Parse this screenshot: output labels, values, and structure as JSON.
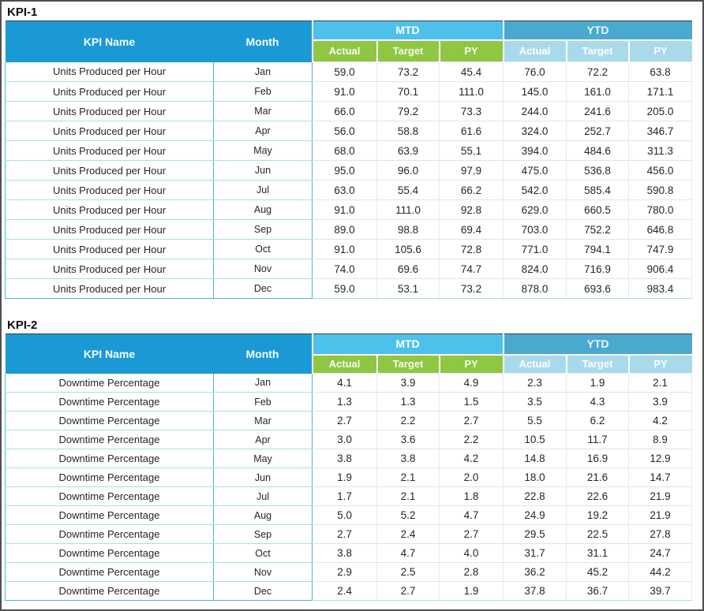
{
  "ui": {
    "sections": [
      {
        "label": "KPI-1"
      },
      {
        "label": "KPI-2"
      }
    ],
    "table_header": {
      "kpi_name": "KPI Name",
      "month": "Month",
      "mtd": "MTD",
      "ytd": "YTD",
      "sub_columns": [
        "Actual",
        "Target",
        "PY"
      ]
    },
    "colors": {
      "main_header": "#1b99d5",
      "mtd_band": "#4ec0ec",
      "ytd_band": "#4aa9ce",
      "mtd_sub": "#8fc743",
      "ytd_sub": "#a9daec",
      "teal_border": "#46b8cb",
      "teal_row": "#a9dee7",
      "num_hline": "#d2e9f1",
      "num_vline": "#e1ecf1",
      "frame_border": "#4f4f4f"
    },
    "value_decimals": 1
  },
  "chart_data": [
    {
      "type": "table",
      "title": "KPI-1",
      "kpi_name": "Units Produced per Hour",
      "columns": [
        "KPI Name",
        "Month",
        "MTD Actual",
        "MTD Target",
        "MTD PY",
        "YTD Actual",
        "YTD Target",
        "YTD PY"
      ],
      "months": [
        "Jan",
        "Feb",
        "Mar",
        "Apr",
        "May",
        "Jun",
        "Jul",
        "Aug",
        "Sep",
        "Oct",
        "Nov",
        "Dec"
      ],
      "series": [
        {
          "name": "MTD Actual",
          "values": [
            59.0,
            91.0,
            66.0,
            56.0,
            68.0,
            95.0,
            63.0,
            91.0,
            89.0,
            91.0,
            74.0,
            59.0
          ]
        },
        {
          "name": "MTD Target",
          "values": [
            73.2,
            70.1,
            79.2,
            58.8,
            63.9,
            96.0,
            55.4,
            111.0,
            98.8,
            105.6,
            69.6,
            53.1
          ]
        },
        {
          "name": "MTD PY",
          "values": [
            45.4,
            111.0,
            73.3,
            61.6,
            55.1,
            97.9,
            66.2,
            92.8,
            69.4,
            72.8,
            74.7,
            73.2
          ]
        },
        {
          "name": "YTD Actual",
          "values": [
            76.0,
            145.0,
            244.0,
            324.0,
            394.0,
            475.0,
            542.0,
            629.0,
            703.0,
            771.0,
            824.0,
            878.0
          ]
        },
        {
          "name": "YTD Target",
          "values": [
            72.2,
            161.0,
            241.6,
            252.7,
            484.6,
            536.8,
            585.4,
            660.5,
            752.2,
            794.1,
            716.9,
            693.6
          ]
        },
        {
          "name": "YTD PY",
          "values": [
            63.8,
            171.1,
            205.0,
            346.7,
            311.3,
            456.0,
            590.8,
            780.0,
            646.8,
            747.9,
            906.4,
            983.4
          ]
        }
      ]
    },
    {
      "type": "table",
      "title": "KPI-2",
      "kpi_name": "Downtime Percentage",
      "columns": [
        "KPI Name",
        "Month",
        "MTD Actual",
        "MTD Target",
        "MTD PY",
        "YTD Actual",
        "YTD Target",
        "YTD PY"
      ],
      "months": [
        "Jan",
        "Feb",
        "Mar",
        "Apr",
        "May",
        "Jun",
        "Jul",
        "Aug",
        "Sep",
        "Oct",
        "Nov",
        "Dec"
      ],
      "series": [
        {
          "name": "MTD Actual",
          "values": [
            4.1,
            1.3,
            2.7,
            3.0,
            3.8,
            1.9,
            1.7,
            5.0,
            2.7,
            3.8,
            2.9,
            2.4
          ]
        },
        {
          "name": "MTD Target",
          "values": [
            3.9,
            1.3,
            2.2,
            3.6,
            3.8,
            2.1,
            2.1,
            5.2,
            2.4,
            4.7,
            2.5,
            2.7
          ]
        },
        {
          "name": "MTD PY",
          "values": [
            4.9,
            1.5,
            2.7,
            2.2,
            4.2,
            2.0,
            1.8,
            4.7,
            2.7,
            4.0,
            2.8,
            1.9
          ]
        },
        {
          "name": "YTD Actual",
          "values": [
            2.3,
            3.5,
            5.5,
            10.5,
            14.8,
            18.0,
            22.8,
            24.9,
            29.5,
            31.7,
            36.2,
            37.8
          ]
        },
        {
          "name": "YTD Target",
          "values": [
            1.9,
            4.3,
            6.2,
            11.7,
            16.9,
            21.6,
            22.6,
            19.2,
            22.5,
            31.1,
            45.2,
            36.7
          ]
        },
        {
          "name": "YTD PY",
          "values": [
            2.1,
            3.9,
            4.2,
            8.9,
            12.9,
            14.7,
            21.9,
            21.9,
            27.8,
            24.7,
            44.2,
            39.7
          ]
        }
      ]
    }
  ]
}
